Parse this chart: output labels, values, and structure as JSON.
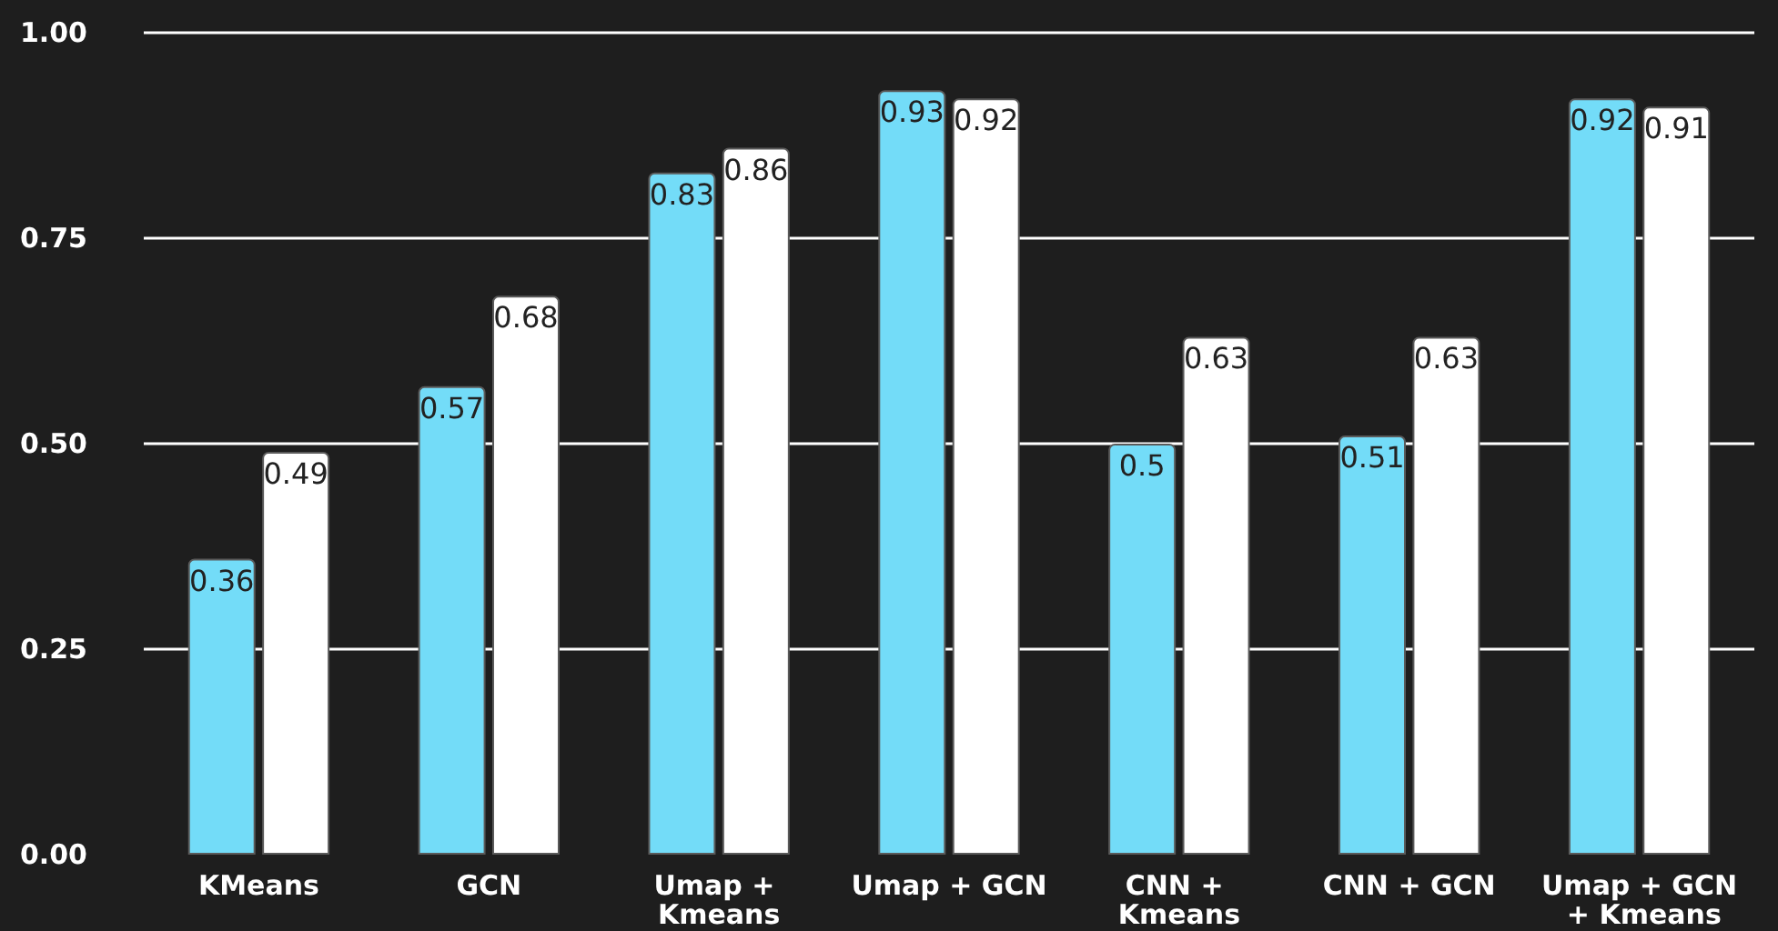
{
  "chart_data": {
    "type": "bar",
    "categories": [
      "KMeans",
      "GCN",
      "Umap + Kmeans",
      "Umap + GCN",
      "CNN + Kmeans",
      "CNN + GCN",
      "Umap + GCN + Kmeans"
    ],
    "series": [
      {
        "color": "#73dcf8",
        "values": [
          0.36,
          0.57,
          0.83,
          0.93,
          0.5,
          0.51,
          0.92
        ]
      },
      {
        "color": "#ffffff",
        "values": [
          0.49,
          0.68,
          0.86,
          0.92,
          0.63,
          0.63,
          0.91
        ]
      }
    ],
    "ylim": [
      0,
      1
    ],
    "yticks": [
      {
        "value": 0,
        "label": "0.00"
      },
      {
        "value": 0.25,
        "label": "0.25"
      },
      {
        "value": 0.5,
        "label": "0.50"
      },
      {
        "value": 0.75,
        "label": "0.75"
      },
      {
        "value": 1,
        "label": "1.00"
      }
    ],
    "grid": "y",
    "data_labels": true
  }
}
